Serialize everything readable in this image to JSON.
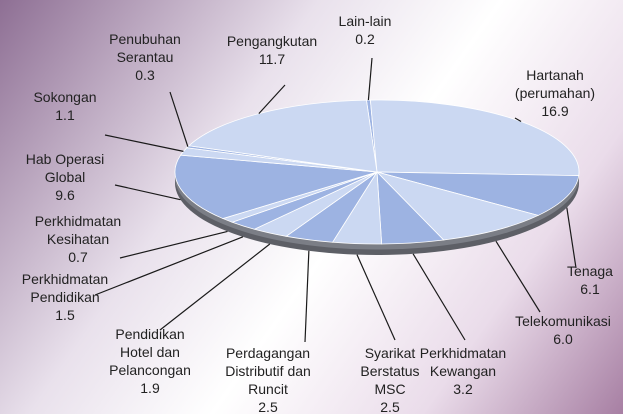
{
  "chart_data": {
    "type": "pie",
    "categories": [
      "Lain-lain",
      "Hartanah (perumahan)",
      "Tenaga",
      "Telekomunikasi",
      "Perkhidmatan Kewangan",
      "Syarikat Berstatus MSC",
      "Perdagangan Distributif dan Runcit",
      "Pendidikan Hotel dan Pelancongan",
      "Perkhidmatan Pendidikan",
      "Perkhidmatan Kesihatan",
      "Hab Operasi Global",
      "Sokongan",
      "Penubuhan Serantau",
      "Pengangkutan"
    ],
    "values": [
      0.2,
      16.9,
      6.1,
      6.0,
      3.2,
      2.5,
      2.5,
      1.9,
      1.5,
      0.7,
      9.6,
      1.1,
      0.3,
      11.7
    ],
    "value_labels": [
      "0.2",
      "16.9",
      "6.1",
      "6.0",
      "3.2",
      "2.5",
      "2.5",
      "1.9",
      "1.5",
      "0.7",
      "9.6",
      "1.1",
      "0.3",
      "11.7"
    ],
    "colors": [
      "#9db3e2",
      "#cbd8f2",
      "#9db3e2",
      "#cbd8f2",
      "#9db3e2",
      "#cbd8f2",
      "#9db3e2",
      "#cbd8f2",
      "#9db3e2",
      "#cbd8f2",
      "#9db3e2",
      "#cbd8f2",
      "#9db3e2",
      "#cbd8f2"
    ]
  }
}
